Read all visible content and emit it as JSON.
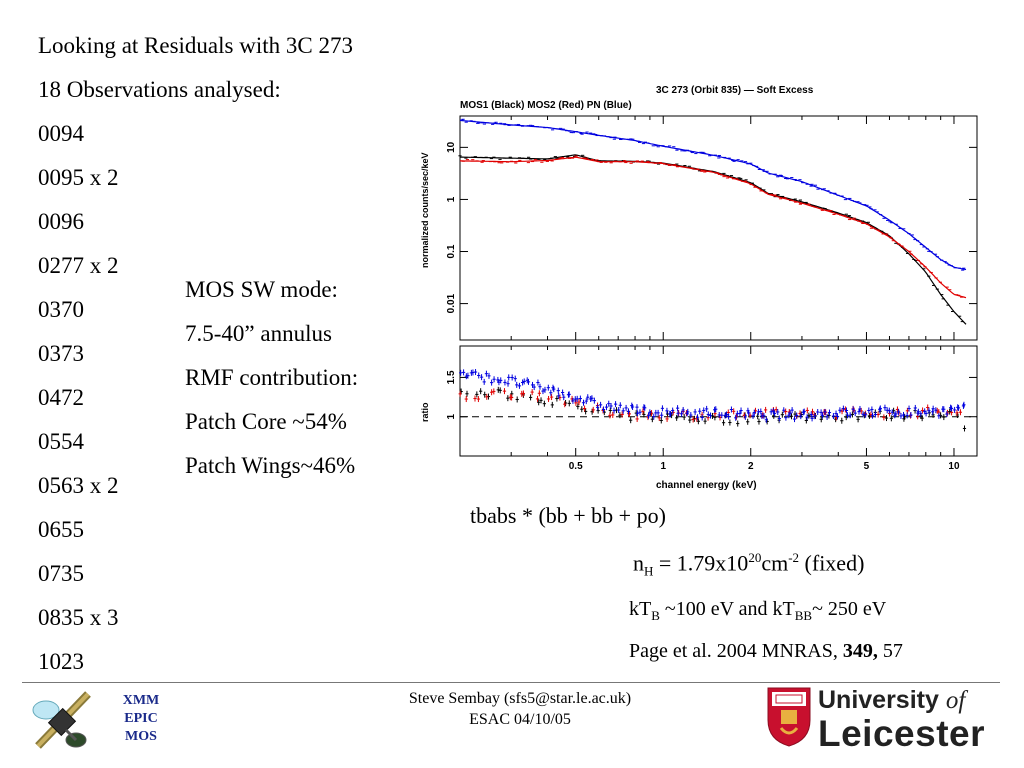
{
  "slide": {
    "title": "Looking at Residuals with 3C 273",
    "subtitle": "18 Observations analysed:",
    "observations": [
      "0094",
      "0095 x 2",
      "0096",
      "0277 x 2",
      "0370",
      "0373",
      "0472",
      "0554",
      "0563 x 2",
      "0655",
      "0735",
      "0835 x 3",
      "1023"
    ],
    "mos_notes": [
      "MOS SW mode:",
      "7.5-40” annulus",
      "RMF contribution:",
      "Patch Core ~54%",
      "Patch Wings~46%"
    ],
    "model": "tbabs * (bb + bb + po)",
    "nh": {
      "sym": "n",
      "sub": "H",
      "eq": " = 1.79x10",
      "exp": "20",
      "unit": "cm",
      "unit_exp": "-2",
      "tail": " (fixed)"
    },
    "kt": {
      "a": "kT",
      "a_sub": "B",
      "mid": " ~100 eV and kT",
      "b_sub": "BB",
      "tail": "~ 250 eV"
    },
    "reference": {
      "pre": "Page et al. 2004 MNRAS, ",
      "vol": "349,",
      "post": " 57"
    }
  },
  "footer": {
    "author": "Steve Sembay (sfs5@star.le.ac.uk)",
    "event": "ESAC 04/10/05",
    "xmm_lines": [
      "XMM",
      "EPIC",
      "MOS"
    ],
    "uni_line1": "University",
    "uni_of": "of",
    "uni_line2": "Leicester"
  },
  "chart_data": {
    "type": "line",
    "title": "3C 273 (Orbit 835) — Soft Excess",
    "legend_text": "MOS1 (Black)   MOS2 (Red)   PN (Blue)",
    "xlabel": "channel energy (keV)",
    "ylabel_top": "normalized counts/sec/keV",
    "ylabel_bottom": "ratio",
    "xscale": "log",
    "xlim": [
      0.2,
      12
    ],
    "ylim_top": [
      0.002,
      40
    ],
    "ylim_bottom": [
      0.5,
      1.9
    ],
    "x_ticks": [
      "0.5",
      "1",
      "2",
      "5",
      "10"
    ],
    "y_ticks_top": [
      "0.01",
      "0.1",
      "1",
      "10"
    ],
    "y_ticks_bottom": [
      "1",
      "1.5"
    ],
    "colors": {
      "MOS1": "#000000",
      "MOS2": "#e00000",
      "PN": "#0000e0"
    },
    "x": [
      0.2,
      0.3,
      0.4,
      0.5,
      0.6,
      0.8,
      1.0,
      1.5,
      2.0,
      2.3,
      3.0,
      4.0,
      5.0,
      6.0,
      7.0,
      8.0,
      9.0,
      10.0,
      11.0
    ],
    "series": [
      {
        "name": "MOS1",
        "model": [
          6.5,
          6.2,
          6.0,
          7.2,
          5.5,
          5.4,
          5.0,
          3.4,
          2.1,
          1.3,
          0.9,
          0.55,
          0.36,
          0.2,
          0.09,
          0.04,
          0.015,
          0.007,
          0.004
        ],
        "ratio": [
          1.3,
          1.28,
          1.22,
          1.1,
          1.05,
          1.0,
          1.0,
          0.97,
          0.97,
          1.0,
          1.0,
          1.0,
          1.02,
          1.02,
          1.03,
          1.04,
          1.05,
          1.05,
          0.82
        ]
      },
      {
        "name": "MOS2",
        "model": [
          5.5,
          5.3,
          5.6,
          6.5,
          5.3,
          5.3,
          4.9,
          3.3,
          2.0,
          1.25,
          0.85,
          0.52,
          0.34,
          0.19,
          0.1,
          0.05,
          0.025,
          0.015,
          0.013
        ],
        "ratio": [
          1.25,
          1.3,
          1.28,
          1.15,
          1.08,
          1.03,
          1.03,
          1.02,
          1.03,
          1.03,
          1.05,
          1.05,
          1.05,
          1.05,
          1.06,
          1.06,
          1.07,
          1.08,
          1.1
        ]
      },
      {
        "name": "PN",
        "model": [
          33,
          27,
          24,
          20,
          17,
          13.5,
          10.5,
          7.0,
          4.8,
          3.2,
          2.2,
          1.2,
          0.75,
          0.4,
          0.22,
          0.12,
          0.07,
          0.05,
          0.045
        ],
        "ratio": [
          1.55,
          1.45,
          1.35,
          1.25,
          1.15,
          1.08,
          1.05,
          1.05,
          1.02,
          1.02,
          1.03,
          1.05,
          1.06,
          1.06,
          1.06,
          1.07,
          1.07,
          1.08,
          1.1
        ]
      }
    ]
  }
}
